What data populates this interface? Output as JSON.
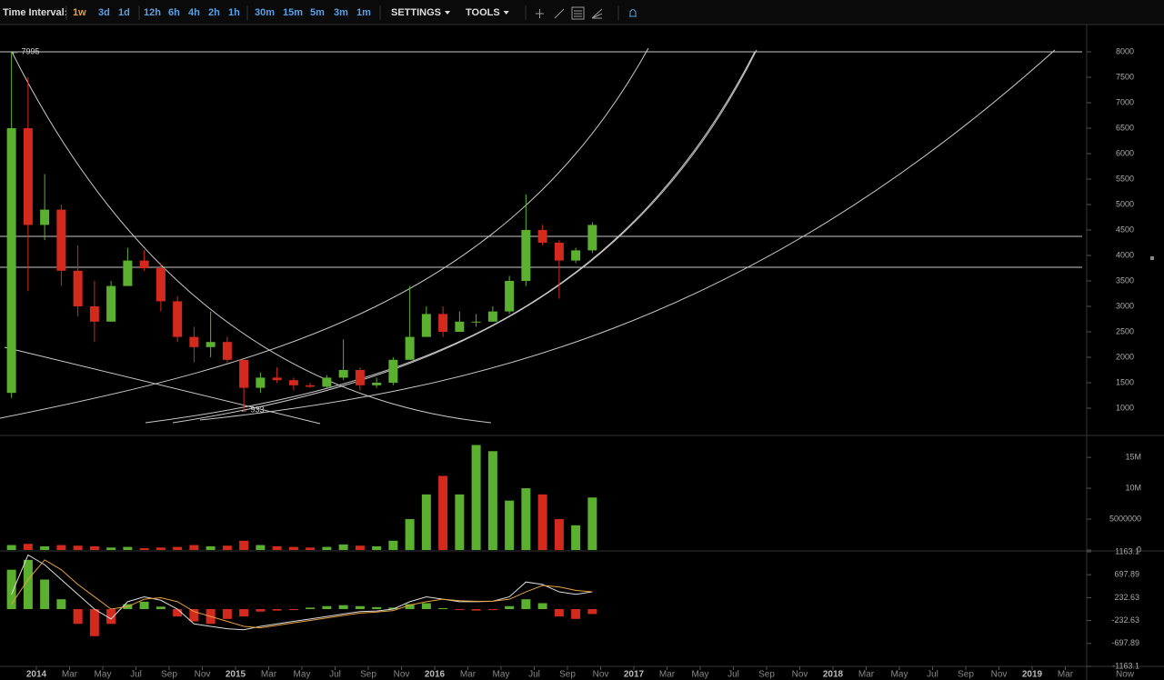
{
  "toolbar": {
    "label": "Time Interval:",
    "intervals": [
      "1w",
      "3d",
      "1d",
      "12h",
      "6h",
      "4h",
      "2h",
      "1h",
      "30m",
      "15m",
      "5m",
      "3m",
      "1m"
    ],
    "active_index": 0,
    "menus": [
      "SETTINGS",
      "TOOLS"
    ]
  },
  "chart_data": [
    {
      "type": "candlestick",
      "x": [
        "2013-11",
        "2013-12",
        "2014-01",
        "2014-02",
        "2014-03",
        "2014-04",
        "2014-05",
        "2014-06",
        "2014-07",
        "2014-08",
        "2014-09",
        "2014-10",
        "2014-11",
        "2014-12",
        "2015-01",
        "2015-02",
        "2015-03",
        "2015-04",
        "2015-05",
        "2015-06",
        "2015-07",
        "2015-08",
        "2015-09",
        "2015-10",
        "2015-11",
        "2015-12",
        "2016-01",
        "2016-02",
        "2016-03",
        "2016-04",
        "2016-05",
        "2016-06",
        "2016-07",
        "2016-08",
        "2016-09",
        "2016-10"
      ],
      "open": [
        1300,
        6500,
        4600,
        4900,
        3700,
        3000,
        2700,
        3400,
        3900,
        3750,
        3100,
        2400,
        2200,
        2300,
        1950,
        1400,
        1600,
        1550,
        1450,
        1420,
        1600,
        1750,
        1450,
        1500,
        1950,
        2400,
        2850,
        2500,
        2700,
        2700,
        2900,
        3500,
        4500,
        4250,
        3900,
        4100
      ],
      "high": [
        7995,
        7500,
        5600,
        5000,
        4200,
        3500,
        3500,
        4150,
        4100,
        3850,
        3200,
        2600,
        2900,
        2400,
        1950,
        1700,
        1800,
        1600,
        1500,
        1650,
        2350,
        1800,
        1600,
        2000,
        3400,
        3000,
        3000,
        2900,
        2850,
        3000,
        3600,
        5200,
        4600,
        4300,
        4150,
        4650
      ],
      "low": [
        1200,
        3300,
        4300,
        3400,
        2800,
        2300,
        2700,
        3400,
        3700,
        2900,
        2300,
        1900,
        2000,
        1900,
        933,
        1300,
        1500,
        1350,
        1400,
        1400,
        1550,
        1350,
        1400,
        1450,
        1950,
        2400,
        2400,
        2500,
        2600,
        2700,
        2850,
        3400,
        4200,
        3150,
        3850,
        4050
      ],
      "close": [
        6500,
        4600,
        4900,
        3700,
        3000,
        2700,
        3400,
        3900,
        3750,
        3100,
        2400,
        2200,
        2300,
        1950,
        1400,
        1600,
        1550,
        1450,
        1420,
        1600,
        1750,
        1450,
        1500,
        1950,
        2400,
        2850,
        2500,
        2700,
        2700,
        2900,
        3500,
        4500,
        4250,
        3900,
        4100,
        4600
      ],
      "up_color": "#5cb030",
      "down_color": "#d42a1e",
      "ylim": [
        482,
        8536
      ],
      "yticks": [
        1000,
        1500,
        2000,
        2500,
        3000,
        3500,
        4000,
        4500,
        5000,
        5500,
        6000,
        6500,
        7000,
        7500,
        8000
      ],
      "levels": [
        8000,
        4375,
        3768
      ],
      "annotations": [
        {
          "text": "← 7995"
        },
        {
          "text": "← 933"
        }
      ],
      "xticks": [
        {
          "value": "2014-01",
          "label": "2014"
        },
        {
          "value": "2014-03",
          "label": "Mar"
        },
        {
          "value": "2014-05",
          "label": "May"
        },
        {
          "value": "2014-07",
          "label": "Jul"
        },
        {
          "value": "2014-09",
          "label": "Sep"
        },
        {
          "value": "2014-11",
          "label": "Nov"
        },
        {
          "value": "2015-01",
          "label": "2015"
        },
        {
          "value": "2015-03",
          "label": "Mar"
        },
        {
          "value": "2015-05",
          "label": "May"
        },
        {
          "value": "2015-07",
          "label": "Jul"
        },
        {
          "value": "2015-09",
          "label": "Sep"
        },
        {
          "value": "2015-11",
          "label": "Nov"
        },
        {
          "value": "2016-01",
          "label": "2016"
        },
        {
          "value": "2016-03",
          "label": "Mar"
        },
        {
          "value": "2016-05",
          "label": "May"
        },
        {
          "value": "2016-07",
          "label": "Jul"
        },
        {
          "value": "2016-09",
          "label": "Sep"
        },
        {
          "value": "2016-11",
          "label": "Nov"
        },
        {
          "value": "2017-01",
          "label": "2017"
        },
        {
          "value": "2017-03",
          "label": "Mar"
        },
        {
          "value": "2017-05",
          "label": "May"
        },
        {
          "value": "2017-07",
          "label": "Jul"
        },
        {
          "value": "2017-09",
          "label": "Sep"
        },
        {
          "value": "2017-11",
          "label": "Nov"
        },
        {
          "value": "2018-01",
          "label": "2018"
        },
        {
          "value": "2018-03",
          "label": "Mar"
        },
        {
          "value": "2018-05",
          "label": "May"
        },
        {
          "value": "2018-07",
          "label": "Jul"
        },
        {
          "value": "2018-09",
          "label": "Sep"
        },
        {
          "value": "2018-11",
          "label": "Nov"
        },
        {
          "value": "2019-01",
          "label": "2019"
        },
        {
          "value": "2019-03",
          "label": "Mar"
        }
      ],
      "x_end_label": "Now"
    },
    {
      "type": "volume",
      "values": [
        800000,
        1000000,
        600000,
        800000,
        700000,
        600000,
        400000,
        500000,
        300000,
        400000,
        500000,
        800000,
        600000,
        700000,
        1500000,
        800000,
        600000,
        500000,
        400000,
        500000,
        900000,
        700000,
        600000,
        1500000,
        5000000,
        9000000,
        12000000,
        9000000,
        17000000,
        16000000,
        8000000,
        10000000,
        9000000,
        5000000,
        4000000,
        8500000
      ],
      "ylim": [
        0,
        18250000
      ],
      "yticks": [
        0,
        5000000,
        {
          "value": 10000000,
          "label": "10M"
        },
        {
          "value": 15000000,
          "label": "15M"
        }
      ]
    },
    {
      "type": "macd",
      "histogram": [
        800,
        1000,
        600,
        200,
        -300,
        -550,
        -300,
        100,
        150,
        50,
        -150,
        -250,
        -300,
        -200,
        -150,
        -50,
        -30,
        -20,
        30,
        60,
        80,
        60,
        40,
        30,
        100,
        120,
        20,
        -10,
        -30,
        -20,
        60,
        200,
        120,
        -150,
        -200,
        -100
      ],
      "macd": [
        300,
        1100,
        900,
        600,
        300,
        0,
        -200,
        150,
        250,
        180,
        0,
        -300,
        -350,
        -400,
        -420,
        -350,
        -300,
        -250,
        -200,
        -150,
        -100,
        -50,
        -40,
        0,
        150,
        250,
        200,
        150,
        150,
        160,
        250,
        550,
        500,
        350,
        300,
        350
      ],
      "signal": [
        100,
        600,
        1000,
        800,
        500,
        250,
        0,
        50,
        200,
        230,
        150,
        -50,
        -150,
        -250,
        -350,
        -380,
        -330,
        -280,
        -230,
        -180,
        -130,
        -80,
        -60,
        -30,
        80,
        150,
        200,
        170,
        160,
        160,
        200,
        350,
        480,
        450,
        380,
        350
      ],
      "macd_color": "#dddddd",
      "signal_color": "#e8a040",
      "ylim": [
        -1163.1,
        1163.1
      ],
      "yticks": [
        1163.1,
        697.89,
        232.63,
        -232.63,
        -697.89,
        -1163.1
      ]
    }
  ]
}
